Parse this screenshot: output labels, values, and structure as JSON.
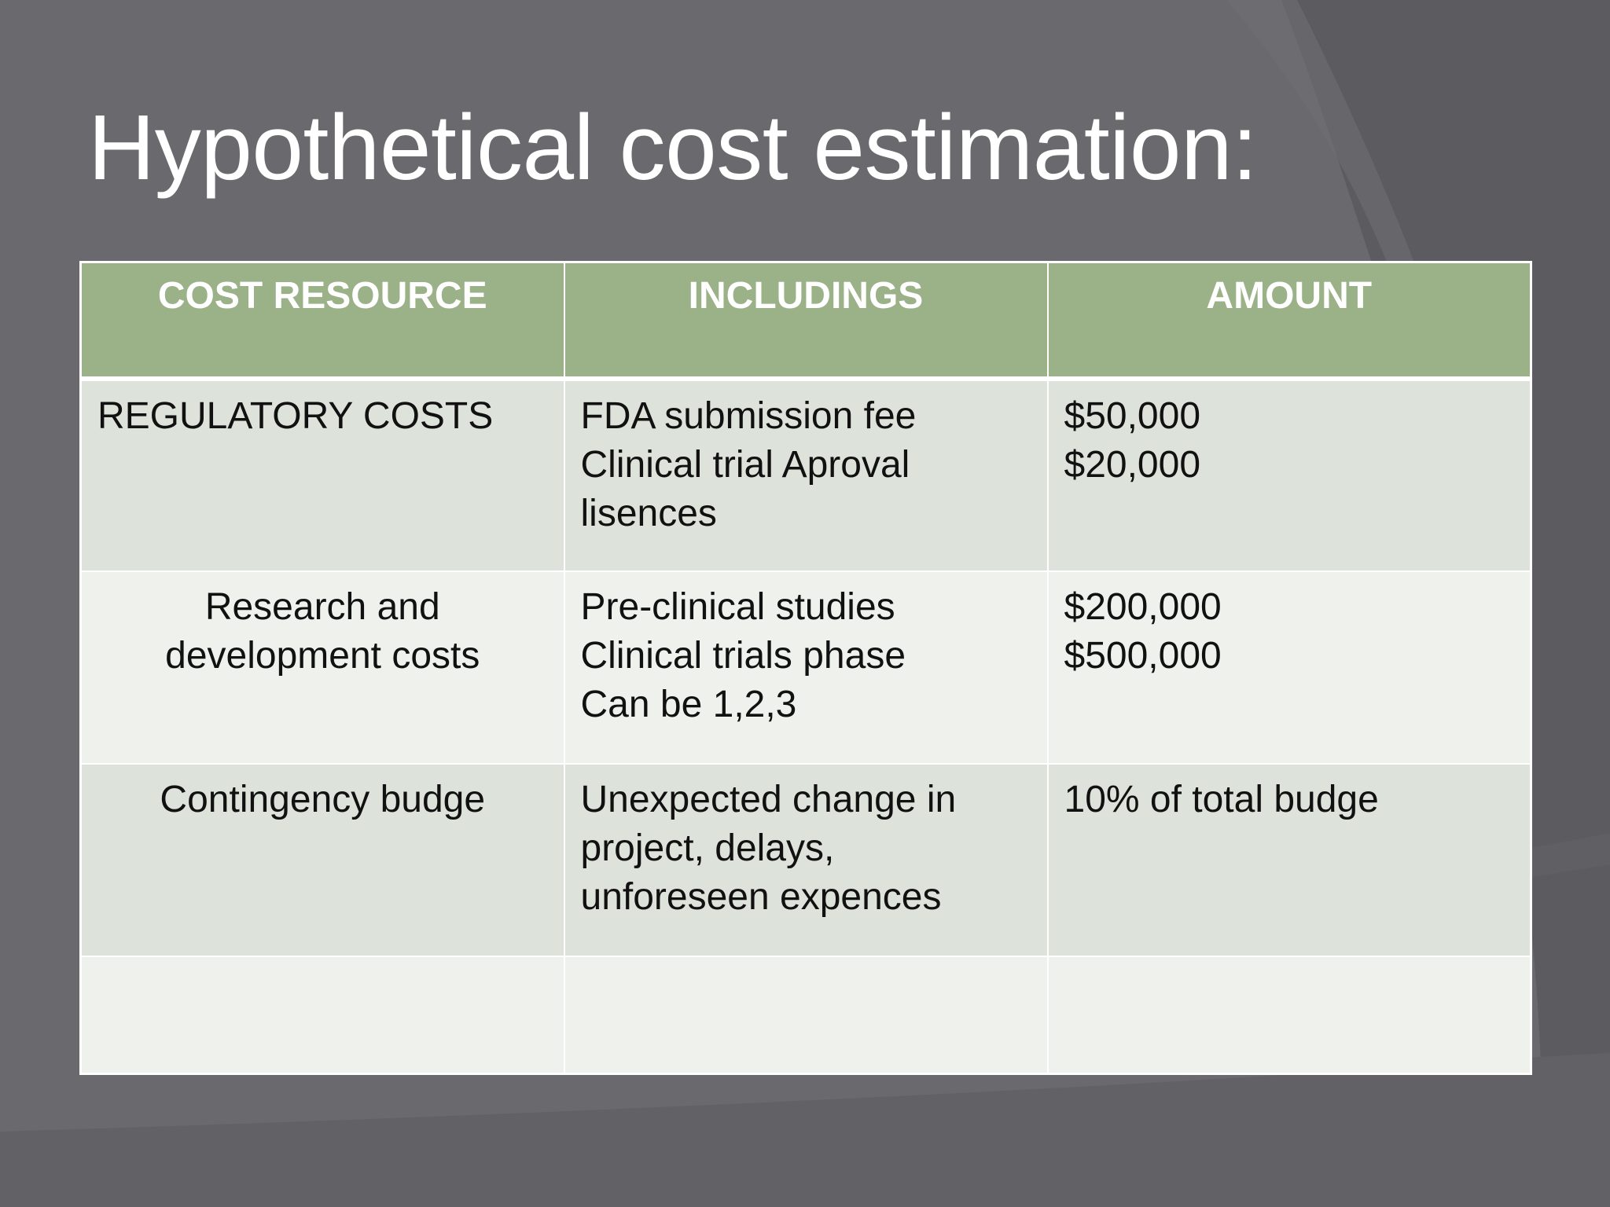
{
  "slide": {
    "title": "Hypothetical cost estimation:",
    "colors": {
      "background": "#6a6a6e",
      "background_shape": "#5b5b5f",
      "header_fill": "#9bb188",
      "row_dark_fill": "#dde3da",
      "row_light_fill": "#eef1ec",
      "title_text": "#ffffff"
    }
  },
  "table": {
    "headers": [
      "COST RESOURCE",
      "INCLUDINGS",
      "AMOUNT"
    ],
    "rows": [
      {
        "resource": [
          "REGULATORY COSTS"
        ],
        "includings": [
          "FDA submission fee",
          "Clinical trial Aproval",
          "lisences"
        ],
        "amount": [
          "$50,000",
          "$20,000"
        ]
      },
      {
        "resource": [
          "Research and",
          "development costs"
        ],
        "includings": [
          "Pre-clinical studies",
          "Clinical trials phase",
          "Can be 1,2,3"
        ],
        "amount": [
          "$200,000",
          "$500,000"
        ]
      },
      {
        "resource": [
          "Contingency budge"
        ],
        "includings": [
          "Unexpected change in",
          "project, delays,",
          "unforeseen expences"
        ],
        "amount": [
          "10% of total budge"
        ]
      },
      {
        "resource": [],
        "includings": [],
        "amount": []
      }
    ]
  }
}
